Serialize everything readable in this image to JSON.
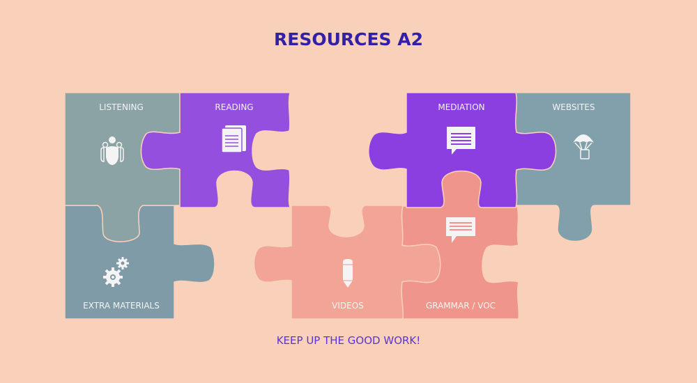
{
  "title": "RESOURCES A2",
  "footer": "KEEP UP THE GOOD WORK!",
  "colors": {
    "background": "#f9d0b9",
    "title": "#3220a8",
    "footer": "#5a35d0",
    "icon": "#f4f4f4"
  },
  "pieces": {
    "listening": {
      "label": "LISTENING",
      "color": "#8ca3a6",
      "icon": "people-icon"
    },
    "reading": {
      "label": "READING",
      "color": "#954fde",
      "icon": "document-icon"
    },
    "mediation": {
      "label": "MEDIATION",
      "color": "#8b3fe0",
      "icon": "speech-bubble-icon"
    },
    "websites": {
      "label": "WEBSITES",
      "color": "#82a0ab",
      "icon": "parachute-icon"
    },
    "extra": {
      "label": "EXTRA MATERIALS",
      "color": "#7f9ba7",
      "icon": "gears-icon"
    },
    "videos": {
      "label": "VIDEOS",
      "color": "#f2a597",
      "icon": "pencil-icon"
    },
    "grammar": {
      "label": "GRAMMAR / VOC",
      "color": "#f0958b",
      "icon": "speech-bubble-icon"
    }
  }
}
